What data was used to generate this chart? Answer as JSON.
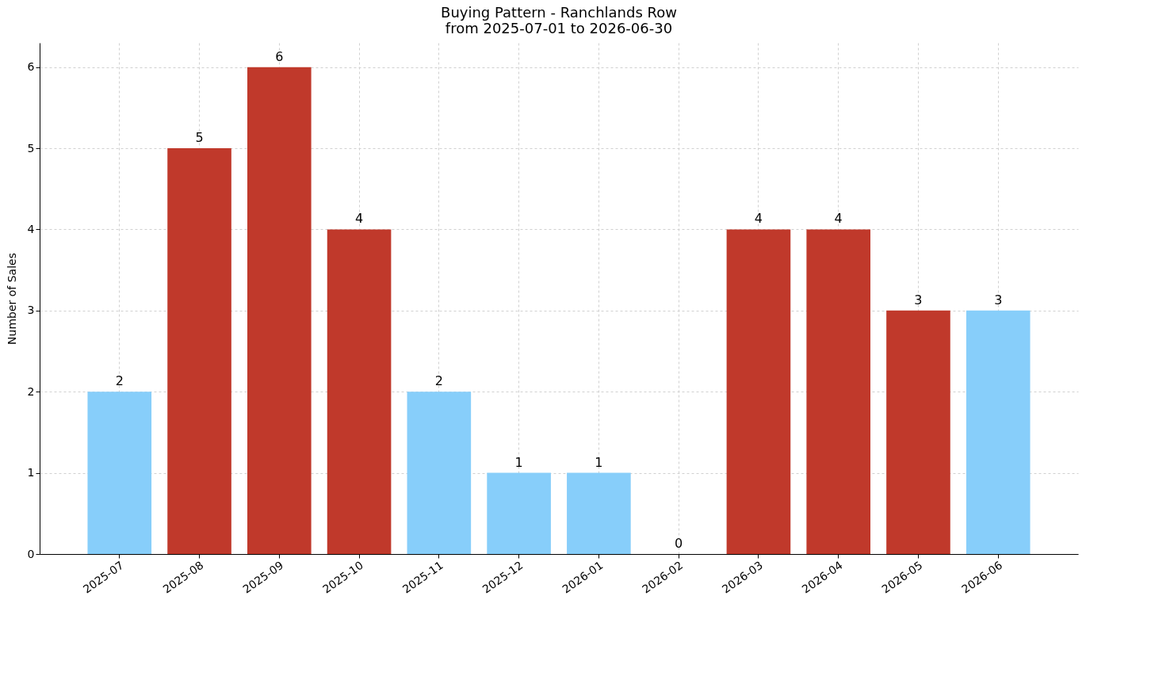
{
  "chart_data": {
    "type": "bar",
    "title": "Buying Pattern - Ranchlands Row",
    "subtitle": "from 2025-07-01 to 2026-06-30",
    "ylabel": "Number of Sales",
    "categories": [
      "2025-07",
      "2025-08",
      "2025-09",
      "2025-10",
      "2025-11",
      "2025-12",
      "2026-01",
      "2026-02",
      "2026-03",
      "2026-04",
      "2026-05",
      "2026-06"
    ],
    "values": [
      2,
      5,
      6,
      4,
      2,
      1,
      1,
      0,
      4,
      4,
      3,
      3
    ],
    "colors": [
      "#87cefa",
      "#c0392b",
      "#c0392b",
      "#c0392b",
      "#87cefa",
      "#87cefa",
      "#87cefa",
      "#87cefa",
      "#c0392b",
      "#c0392b",
      "#c0392b",
      "#87cefa"
    ],
    "ylim": [
      0,
      6.3
    ],
    "yticks": [
      0,
      1,
      2,
      3,
      4,
      5,
      6
    ],
    "grid": true,
    "data_labels": true
  }
}
